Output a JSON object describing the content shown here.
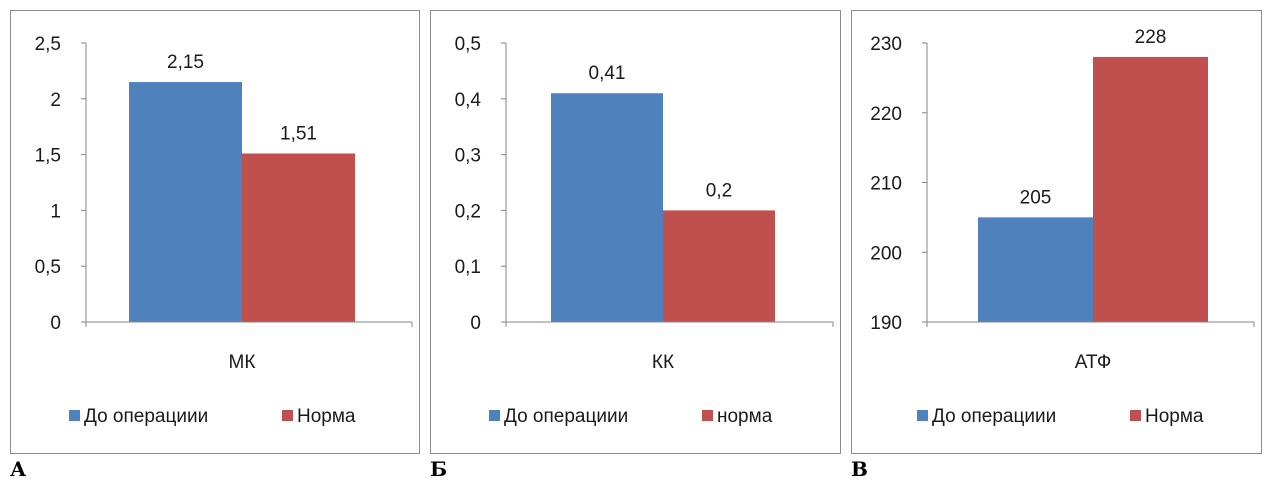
{
  "colors": {
    "series_1": "#4f81bd",
    "series_2": "#c0504d",
    "axis": "#868686"
  },
  "panel_letters": [
    "А",
    "Б",
    "В"
  ],
  "chart_data": [
    {
      "type": "bar",
      "categories": [
        "МК"
      ],
      "series": [
        {
          "name": "До операциии",
          "values": [
            2.15
          ]
        },
        {
          "name": "Норма",
          "values": [
            1.51
          ]
        }
      ],
      "data_labels": [
        "2,15",
        "1,51"
      ],
      "yticks": [
        "0",
        "0,5",
        "1",
        "1,5",
        "2",
        "2,5"
      ],
      "ylim": [
        0,
        2.5
      ],
      "grid": false,
      "legend": "bottom"
    },
    {
      "type": "bar",
      "categories": [
        "КК"
      ],
      "series": [
        {
          "name": "До операциии",
          "values": [
            0.41
          ]
        },
        {
          "name": "норма",
          "values": [
            0.2
          ]
        }
      ],
      "data_labels": [
        "0,41",
        "0,2"
      ],
      "yticks": [
        "0",
        "0,1",
        "0,2",
        "0,3",
        "0,4",
        "0,5"
      ],
      "ylim": [
        0,
        0.5
      ],
      "grid": false,
      "legend": "bottom"
    },
    {
      "type": "bar",
      "categories": [
        "АТФ"
      ],
      "series": [
        {
          "name": "До операциии",
          "values": [
            205
          ]
        },
        {
          "name": "Норма",
          "values": [
            228
          ]
        }
      ],
      "data_labels": [
        "205",
        "228"
      ],
      "yticks": [
        "190",
        "200",
        "210",
        "220",
        "230"
      ],
      "ylim": [
        190,
        230
      ],
      "grid": false,
      "legend": "bottom"
    }
  ]
}
